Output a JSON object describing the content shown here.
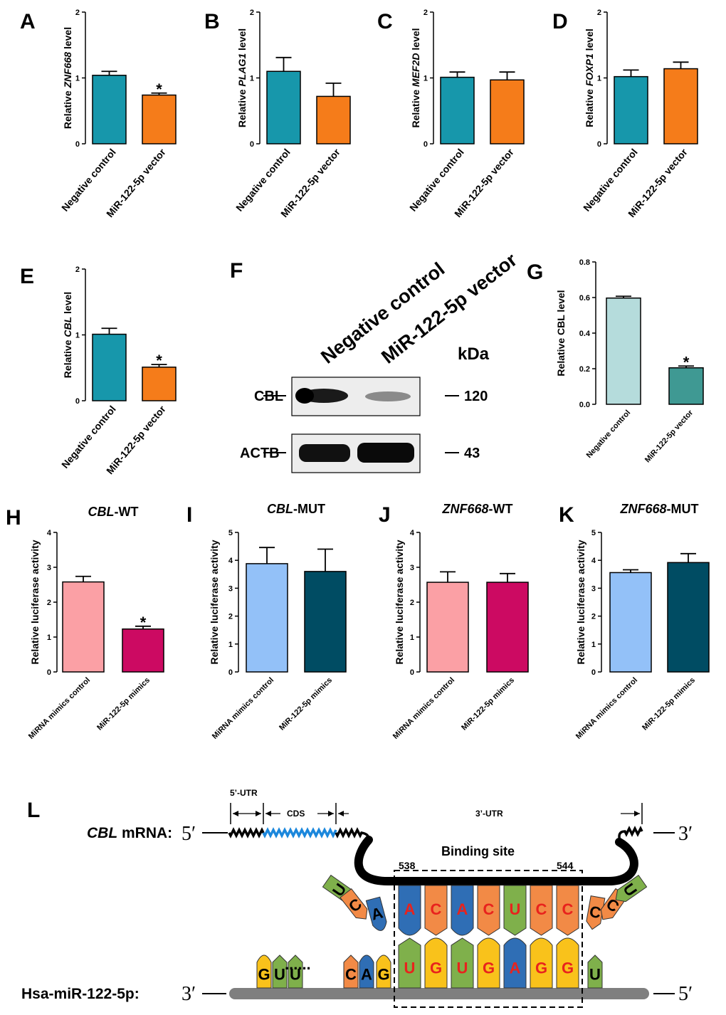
{
  "chart_data": [
    {
      "id": "A",
      "type": "bar",
      "label": "A",
      "ylabel_prefix": "Relative ",
      "ylabel_gene": "ZNF668",
      "ylabel_suffix": "  level",
      "ylim": [
        0,
        2
      ],
      "yticks": [
        0,
        1,
        2
      ],
      "categories": [
        "Negative control",
        "MiR-122-5p vector"
      ],
      "values": [
        1.04,
        0.74
      ],
      "errors": [
        0.06,
        0.03
      ],
      "colors": [
        "#1797ab",
        "#f57c1a"
      ],
      "significant": [
        false,
        true
      ],
      "sig_mark": "*"
    },
    {
      "id": "B",
      "type": "bar",
      "label": "B",
      "ylabel_prefix": "Relative ",
      "ylabel_gene": "PLAG1",
      "ylabel_suffix": "  level",
      "ylim": [
        0,
        2
      ],
      "yticks": [
        0,
        1,
        2
      ],
      "categories": [
        "Negative control",
        "MiR-122-5p vector"
      ],
      "values": [
        1.1,
        0.72
      ],
      "errors": [
        0.21,
        0.2
      ],
      "colors": [
        "#1797ab",
        "#f57c1a"
      ],
      "significant": [
        false,
        false
      ]
    },
    {
      "id": "C",
      "type": "bar",
      "label": "C",
      "ylabel_prefix": "Relative ",
      "ylabel_gene": "MEF2D",
      "ylabel_suffix": "  level",
      "ylim": [
        0,
        2
      ],
      "yticks": [
        0,
        1,
        2
      ],
      "categories": [
        "Negative control",
        "MiR-122-5p vector"
      ],
      "values": [
        1.01,
        0.97
      ],
      "errors": [
        0.08,
        0.12
      ],
      "colors": [
        "#1797ab",
        "#f57c1a"
      ],
      "significant": [
        false,
        false
      ]
    },
    {
      "id": "D",
      "type": "bar",
      "label": "D",
      "ylabel_prefix": "Relative ",
      "ylabel_gene": "FOXP1",
      "ylabel_suffix": "  level",
      "ylim": [
        0,
        2
      ],
      "yticks": [
        0,
        1,
        2
      ],
      "categories": [
        "Negative control",
        "MiR-122-5p vector"
      ],
      "values": [
        1.02,
        1.14
      ],
      "errors": [
        0.1,
        0.1
      ],
      "colors": [
        "#1797ab",
        "#f57c1a"
      ],
      "significant": [
        false,
        false
      ]
    },
    {
      "id": "E",
      "type": "bar",
      "label": "E",
      "ylabel_prefix": "Relative ",
      "ylabel_gene": "CBL",
      "ylabel_suffix": "  level",
      "ylim": [
        0,
        2
      ],
      "yticks": [
        0,
        1,
        2
      ],
      "categories": [
        "Negative control",
        "MiR-122-5p vector"
      ],
      "values": [
        1.01,
        0.51
      ],
      "errors": [
        0.09,
        0.04
      ],
      "colors": [
        "#1797ab",
        "#f57c1a"
      ],
      "significant": [
        false,
        true
      ],
      "sig_mark": "*"
    },
    {
      "id": "G",
      "type": "bar",
      "label": "G",
      "ylabel_prefix": "Relative CBL level",
      "ylabel_gene": "",
      "ylabel_suffix": "",
      "ylim": [
        0,
        0.8
      ],
      "yticks": [
        "0.0",
        "0.2",
        "0.4",
        "0.6",
        "0.8"
      ],
      "categories": [
        "Negative control",
        "MiR-122-5p vector"
      ],
      "values": [
        0.597,
        0.205
      ],
      "errors": [
        0.01,
        0.01
      ],
      "colors": [
        "#b5dcdc",
        "#3f9993"
      ],
      "significant": [
        false,
        true
      ],
      "sig_mark": "*"
    },
    {
      "id": "H",
      "type": "bar",
      "label": "H",
      "title_gene": "CBL",
      "title_suffix": "-WT",
      "ylabel_prefix": "Relative luciferase activity",
      "ylim": [
        0,
        4
      ],
      "yticks": [
        0,
        1,
        2,
        3,
        4
      ],
      "categories": [
        "MiRNA mimics control",
        "MiR-122-5p mimics"
      ],
      "values": [
        2.58,
        1.23
      ],
      "errors": [
        0.16,
        0.08
      ],
      "colors": [
        "#fba0a5",
        "#cc0a62"
      ],
      "significant": [
        false,
        true
      ],
      "sig_mark": "*"
    },
    {
      "id": "I",
      "type": "bar",
      "label": "I",
      "title_gene": "CBL",
      "title_suffix": "-MUT",
      "ylabel_prefix": "Relative luciferase activity",
      "ylim": [
        0,
        5
      ],
      "yticks": [
        0,
        1,
        2,
        3,
        4,
        5
      ],
      "categories": [
        "MiRNA mimics control",
        "MiR-122-5p mimics"
      ],
      "values": [
        3.88,
        3.6
      ],
      "errors": [
        0.58,
        0.8
      ],
      "colors": [
        "#93c1f8",
        "#004c63"
      ],
      "significant": [
        false,
        false
      ]
    },
    {
      "id": "J",
      "type": "bar",
      "label": "J",
      "title_gene": "ZNF668",
      "title_suffix": "-WT",
      "ylabel_prefix": "Relative luciferase activity",
      "ylim": [
        0,
        4
      ],
      "yticks": [
        0,
        1,
        2,
        3,
        4
      ],
      "categories": [
        "MiRNA mimics control",
        "MiR-122-5p mimics"
      ],
      "values": [
        2.57,
        2.57
      ],
      "errors": [
        0.3,
        0.25
      ],
      "colors": [
        "#fba0a5",
        "#cc0a62"
      ],
      "significant": [
        false,
        false
      ]
    },
    {
      "id": "K",
      "type": "bar",
      "label": "K",
      "title_gene": "ZNF668",
      "title_suffix": "-MUT",
      "ylabel_prefix": "Relative luciferase activity",
      "ylim": [
        0,
        5
      ],
      "yticks": [
        0,
        1,
        2,
        3,
        4,
        5
      ],
      "categories": [
        "MiRNA mimics control",
        "MiR-122-5p mimics"
      ],
      "values": [
        3.56,
        3.92
      ],
      "errors": [
        0.1,
        0.32
      ],
      "colors": [
        "#93c1f8",
        "#004c63"
      ],
      "significant": [
        false,
        false
      ]
    }
  ],
  "blot": {
    "label": "F",
    "lanes": [
      "Negative control",
      "MiR-122-5p vector"
    ],
    "unit": "kDa",
    "proteins": [
      {
        "name": "CBL",
        "size": "120"
      },
      {
        "name": "ACTB",
        "size": "43"
      }
    ]
  },
  "diagram": {
    "label": "L",
    "mrna_gene": "CBL",
    "mrna_suffix": " mRNA:",
    "five_prime": "5′",
    "three_prime": "3′",
    "region_5utr": "5’-UTR",
    "region_cds": "CDS",
    "region_3utr": "3’-UTR",
    "binding_site": "Binding site",
    "pos_start": "538",
    "pos_end": "544",
    "mirna_label": "Hsa-miR-122-5p:",
    "mrna_left_bases": [
      "U",
      "C",
      "A"
    ],
    "mrna_site_bases": [
      "A",
      "C",
      "A",
      "C",
      "U",
      "C",
      "C"
    ],
    "mrna_right_bases": [
      "C",
      "C",
      "U"
    ],
    "mirna_left_bases": [
      "G",
      "U",
      "U",
      "C",
      "A",
      "G"
    ],
    "mirna_dots": "......",
    "mirna_site_bases": [
      "U",
      "G",
      "U",
      "G",
      "A",
      "G",
      "G"
    ],
    "mirna_right_bases": [
      "U"
    ]
  },
  "colors": {
    "A": "#2f6eb5",
    "C": "#f28a46",
    "G": "#f9c21b",
    "U": "#7fb04b",
    "ink": "#000000",
    "axis": "#000000"
  }
}
